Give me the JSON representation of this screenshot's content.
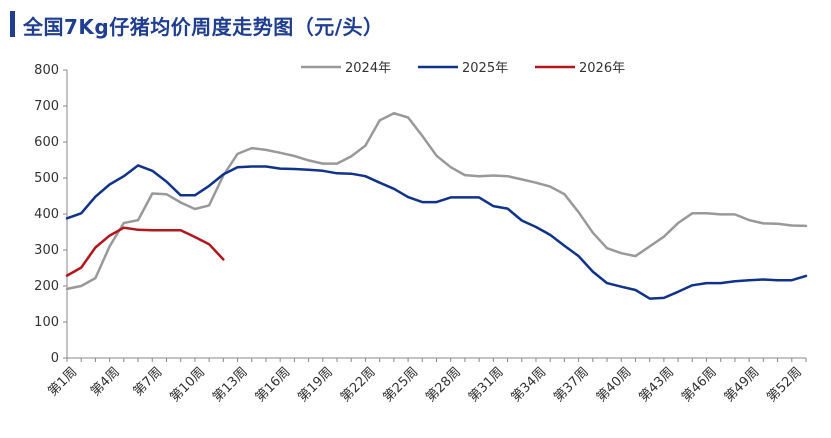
{
  "chart_data": {
    "type": "line",
    "title": "全国7Kg仔猪均价周度走势图（元/头）",
    "xlabel": "",
    "ylabel": "",
    "ylim": [
      0,
      800
    ],
    "y_ticks": [
      0,
      100,
      200,
      300,
      400,
      500,
      600,
      700,
      800
    ],
    "x_tick_labels": [
      "第1周",
      "第4周",
      "第7周",
      "第10周",
      "第13周",
      "第16周",
      "第19周",
      "第22周",
      "第25周",
      "第28周",
      "第31周",
      "第34周",
      "第37周",
      "第40周",
      "第43周",
      "第46周",
      "第49周",
      "第52周"
    ],
    "x_range": [
      1,
      53
    ],
    "grid": false,
    "legend_position": "top-center",
    "series": [
      {
        "name": "2024年",
        "color": "#999999",
        "x": [
          1,
          2,
          3,
          4,
          5,
          6,
          7,
          8,
          9,
          10,
          11,
          12,
          13,
          14,
          15,
          16,
          17,
          18,
          19,
          20,
          21,
          22,
          23,
          24,
          25,
          26,
          27,
          28,
          29,
          30,
          31,
          32,
          33,
          34,
          35,
          36,
          37,
          38,
          39,
          40,
          41,
          42,
          43,
          44,
          45,
          46,
          47,
          48,
          49,
          50,
          51,
          52,
          53
        ],
        "values": [
          192,
          200,
          222,
          310,
          375,
          383,
          457,
          455,
          432,
          414,
          424,
          507,
          567,
          583,
          578,
          570,
          561,
          549,
          540,
          540,
          560,
          590,
          660,
          680,
          668,
          617,
          562,
          530,
          508,
          505,
          507,
          505,
          496,
          487,
          476,
          455,
          405,
          348,
          305,
          291,
          283,
          310,
          337,
          375,
          402,
          402,
          399,
          399,
          383,
          374,
          373,
          368,
          367
        ]
      },
      {
        "name": "2025年",
        "color": "#10338a",
        "x": [
          1,
          2,
          3,
          4,
          5,
          6,
          7,
          8,
          9,
          10,
          11,
          12,
          13,
          14,
          15,
          16,
          17,
          18,
          19,
          20,
          21,
          22,
          23,
          24,
          25,
          26,
          27,
          28,
          29,
          30,
          31,
          32,
          33,
          34,
          35,
          36,
          37,
          38,
          39,
          40,
          41,
          42,
          43,
          44,
          45,
          46,
          47,
          48,
          49,
          50,
          51,
          52,
          53
        ],
        "values": [
          388,
          402,
          448,
          482,
          505,
          535,
          520,
          490,
          452,
          452,
          478,
          510,
          530,
          532,
          532,
          526,
          525,
          523,
          520,
          513,
          512,
          505,
          487,
          470,
          447,
          433,
          433,
          446,
          446,
          446,
          422,
          415,
          382,
          364,
          342,
          312,
          283,
          240,
          208,
          198,
          189,
          165,
          167,
          184,
          202,
          208,
          208,
          213,
          216,
          218,
          216,
          216,
          228
        ]
      },
      {
        "name": "2026年",
        "color": "#b3161b",
        "x": [
          1,
          2,
          3,
          4,
          5,
          6,
          7,
          8,
          9,
          10,
          11,
          12
        ],
        "values": [
          229,
          251,
          307,
          340,
          362,
          356,
          355,
          355,
          355,
          336,
          316,
          274
        ]
      }
    ]
  }
}
